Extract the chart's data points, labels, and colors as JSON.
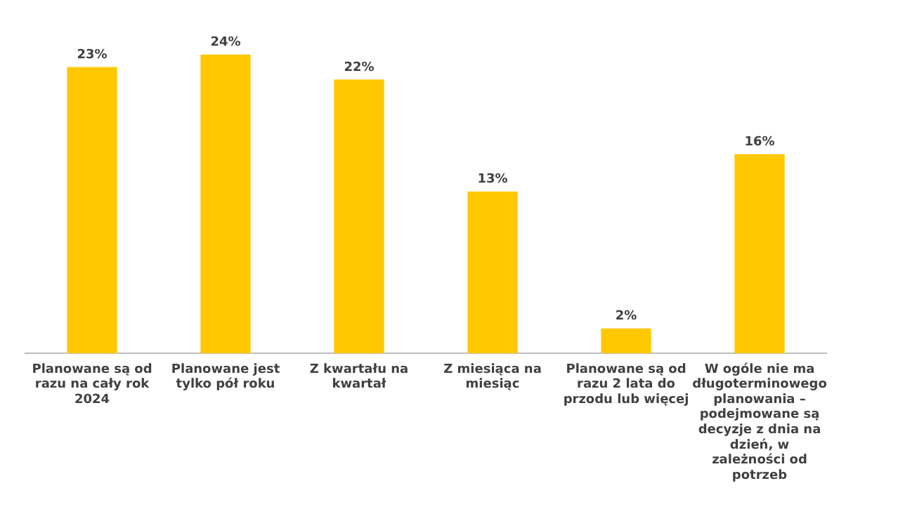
{
  "chart_data": {
    "type": "bar",
    "categories": [
      "Planowane są od razu na cały rok 2024",
      "Planowane jest tylko pół roku",
      "Z kwartału na kwartał",
      "Z miesiąca na miesiąc",
      "Planowane są od razu 2 lata do przodu lub więcej",
      "W ogóle nie ma długoterminowego planowania – podejmowane są decyzje z dnia na dzień, w zależności od potrzeb"
    ],
    "values": [
      23,
      24,
      22,
      13,
      2,
      16
    ],
    "color": "#ffc800",
    "value_labels": [
      "23%",
      "24%",
      "22%",
      "13%",
      "2%",
      "16%"
    ],
    "grid": false,
    "legend": false
  }
}
